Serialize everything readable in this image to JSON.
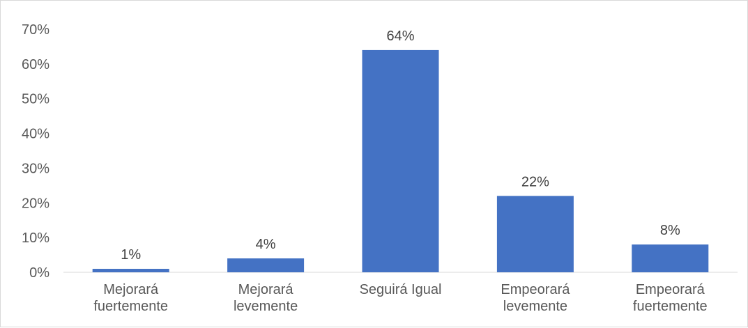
{
  "chart_data": {
    "type": "bar",
    "categories": [
      [
        "Mejorará",
        "fuertemente"
      ],
      [
        "Mejorará",
        "levemente"
      ],
      [
        "Seguirá Igual"
      ],
      [
        "Empeorará",
        "levemente"
      ],
      [
        "Empeorará",
        "fuertemente"
      ]
    ],
    "values": [
      1,
      4,
      64,
      22,
      8
    ],
    "data_labels": [
      "1%",
      "4%",
      "64%",
      "22%",
      "8%"
    ],
    "y_ticks": [
      "0%",
      "10%",
      "20%",
      "30%",
      "40%",
      "50%",
      "60%",
      "70%"
    ],
    "ylim": [
      0,
      70
    ],
    "grid": false,
    "legend": "none",
    "bar_color": "#4472c4",
    "axis_color": "#d9d9d9"
  }
}
